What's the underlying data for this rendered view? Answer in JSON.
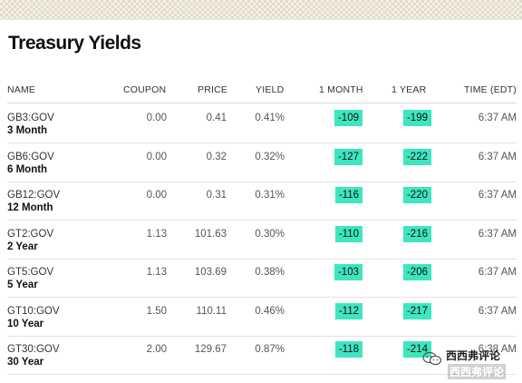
{
  "page": {
    "title": "Treasury Yields"
  },
  "colors": {
    "accent_highlight": "#3ee6c0",
    "band": "#f3f0e6"
  },
  "table": {
    "headers": {
      "name": "NAME",
      "coupon": "COUPON",
      "price": "PRICE",
      "yield": "YIELD",
      "month": "1 MONTH",
      "year": "1 YEAR",
      "time": "TIME (EDT)"
    },
    "rows": [
      {
        "ticker": "GB3:GOV",
        "tenor": "3 Month",
        "coupon": "0.00",
        "price": "0.41",
        "yield": "0.41%",
        "month": "-109",
        "year": "-199",
        "time": "6:37 AM"
      },
      {
        "ticker": "GB6:GOV",
        "tenor": "6 Month",
        "coupon": "0.00",
        "price": "0.32",
        "yield": "0.32%",
        "month": "-127",
        "year": "-222",
        "time": "6:37 AM"
      },
      {
        "ticker": "GB12:GOV",
        "tenor": "12 Month",
        "coupon": "0.00",
        "price": "0.31",
        "yield": "0.31%",
        "month": "-116",
        "year": "-220",
        "time": "6:37 AM"
      },
      {
        "ticker": "GT2:GOV",
        "tenor": "2 Year",
        "coupon": "1.13",
        "price": "101.63",
        "yield": "0.30%",
        "month": "-110",
        "year": "-216",
        "time": "6:37 AM"
      },
      {
        "ticker": "GT5:GOV",
        "tenor": "5 Year",
        "coupon": "1.13",
        "price": "103.69",
        "yield": "0.38%",
        "month": "-103",
        "year": "-206",
        "time": "6:37 AM"
      },
      {
        "ticker": "GT10:GOV",
        "tenor": "10 Year",
        "coupon": "1.50",
        "price": "110.11",
        "yield": "0.46%",
        "month": "-112",
        "year": "-217",
        "time": "6:37 AM"
      },
      {
        "ticker": "GT30:GOV",
        "tenor": "30 Year",
        "coupon": "2.00",
        "price": "129.67",
        "yield": "0.87%",
        "month": "-118",
        "year": "-214",
        "time": "6:38 AM"
      }
    ]
  },
  "watermark": {
    "line1": "西西弗评论",
    "line2": "西西弗评论",
    "icon": "wechat-icon"
  }
}
